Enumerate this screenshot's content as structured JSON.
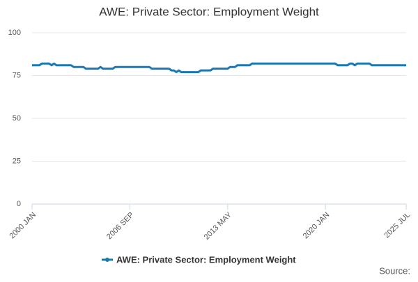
{
  "chart_data": {
    "type": "line",
    "title": "AWE: Private Sector: Employment Weight",
    "categories": [
      "2000 JAN",
      null,
      null,
      null,
      null,
      null,
      null,
      null,
      null,
      null,
      null,
      null,
      null,
      null,
      null,
      null,
      null,
      null,
      null,
      null,
      null,
      null,
      null,
      null,
      null,
      null,
      null,
      null,
      null,
      null,
      null,
      null,
      null,
      null,
      null,
      null,
      null,
      null,
      null,
      null,
      "2006 SEP",
      null,
      null,
      null,
      null,
      null,
      null,
      null,
      null,
      null,
      null,
      null,
      null,
      null,
      null,
      null,
      null,
      null,
      null,
      null,
      null,
      null,
      null,
      null,
      null,
      null,
      null,
      null,
      null,
      null,
      null,
      null,
      null,
      null,
      null,
      null,
      null,
      null,
      null,
      null,
      "2013 MAY",
      null,
      null,
      null,
      null,
      null,
      null,
      null,
      null,
      null,
      null,
      null,
      null,
      null,
      null,
      null,
      null,
      null,
      null,
      null,
      null,
      null,
      null,
      null,
      null,
      null,
      null,
      null,
      null,
      null,
      null,
      null,
      null,
      null,
      null,
      null,
      null,
      null,
      null,
      null,
      "2020 JAN",
      null,
      null,
      null,
      null,
      null,
      null,
      null,
      null,
      null,
      null,
      null,
      null,
      null,
      null,
      null,
      null,
      null,
      null,
      null,
      null,
      null,
      null,
      null,
      null,
      null,
      null,
      null,
      null,
      null,
      null,
      null,
      null,
      "2025 JUL"
    ],
    "series": [
      {
        "name": "AWE: Private Sector: Employment Weight",
        "color": "#1a78b4",
        "values": [
          81,
          81,
          81,
          81,
          82,
          82,
          82,
          82,
          81,
          82,
          81,
          81,
          81,
          81,
          81,
          81,
          81,
          80,
          80,
          80,
          80,
          80,
          79,
          79,
          79,
          79,
          79,
          79,
          80,
          79,
          79,
          79,
          79,
          79,
          80,
          80,
          80,
          80,
          80,
          80,
          80,
          80,
          80,
          80,
          80,
          80,
          80,
          80,
          80,
          79,
          79,
          79,
          79,
          79,
          79,
          79,
          79,
          78,
          78,
          77,
          78,
          77,
          77,
          77,
          77,
          77,
          77,
          77,
          77,
          78,
          78,
          78,
          78,
          78,
          79,
          79,
          79,
          79,
          79,
          79,
          79,
          80,
          80,
          80,
          81,
          81,
          81,
          81,
          81,
          81,
          82,
          82,
          82,
          82,
          82,
          82,
          82,
          82,
          82,
          82,
          82,
          82,
          82,
          82,
          82,
          82,
          82,
          82,
          82,
          82,
          82,
          82,
          82,
          82,
          82,
          82,
          82,
          82,
          82,
          82,
          82,
          82,
          82,
          82,
          82,
          81,
          81,
          81,
          81,
          81,
          82,
          82,
          81,
          82,
          82,
          82,
          82,
          82,
          82,
          81,
          81,
          81,
          81,
          81,
          81,
          81,
          81,
          81,
          81,
          81,
          81,
          81,
          81,
          81
        ]
      }
    ],
    "ylim": [
      0,
      100
    ],
    "yticks": [
      0,
      25,
      50,
      75,
      100
    ],
    "grid": true,
    "source": "Source:"
  }
}
